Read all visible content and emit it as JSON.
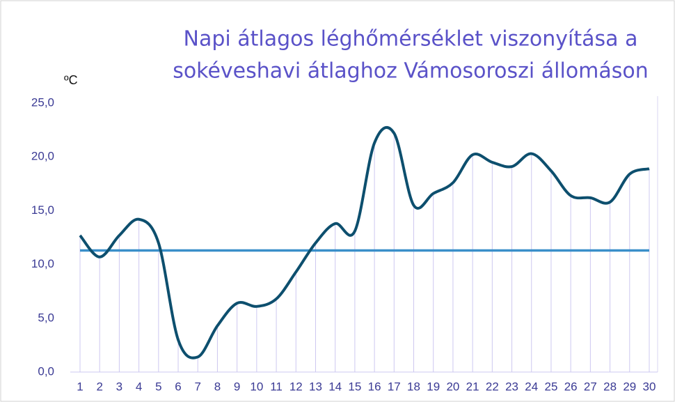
{
  "chart_data": {
    "type": "line",
    "title": [
      "Napi átlagos léghőmérséklet viszonyítása a",
      "sokéveshavi átlaghoz Vámosoroszi állomáson"
    ],
    "y_label": "ºC",
    "categories": [
      "1",
      "2",
      "3",
      "4",
      "5",
      "6",
      "7",
      "8",
      "9",
      "10",
      "11",
      "12",
      "13",
      "14",
      "15",
      "16",
      "17",
      "18",
      "19",
      "20",
      "21",
      "22",
      "23",
      "24",
      "25",
      "26",
      "27",
      "28",
      "29",
      "30"
    ],
    "series": [
      {
        "color": "#0d4f6e",
        "values": [
          12.7,
          10.7,
          12.7,
          14.2,
          12.0,
          3.0,
          1.4,
          4.3,
          6.4,
          6.1,
          6.8,
          9.3,
          12.0,
          13.8,
          13.1,
          21.3,
          22.2,
          15.5,
          16.6,
          17.6,
          20.2,
          19.5,
          19.1,
          20.3,
          18.7,
          16.4,
          16.2,
          15.8,
          18.4,
          18.9
        ]
      },
      {
        "color": "#3a8fc9",
        "values": [
          11.3,
          11.3,
          11.3,
          11.3,
          11.3,
          11.3,
          11.3,
          11.3,
          11.3,
          11.3,
          11.3,
          11.3,
          11.3,
          11.3,
          11.3,
          11.3,
          11.3,
          11.3,
          11.3,
          11.3,
          11.3,
          11.3,
          11.3,
          11.3,
          11.3,
          11.3,
          11.3,
          11.3,
          11.3,
          11.3
        ]
      }
    ],
    "ylim": [
      0,
      25
    ],
    "yticks": [
      {
        "value": 0,
        "label": "0,0"
      },
      {
        "value": 5,
        "label": "5,0"
      },
      {
        "value": 10,
        "label": "10,0"
      },
      {
        "value": 15,
        "label": "15,0"
      },
      {
        "value": 20,
        "label": "20,0"
      },
      {
        "value": 25,
        "label": "25,0"
      }
    ],
    "drop_lines": true
  }
}
